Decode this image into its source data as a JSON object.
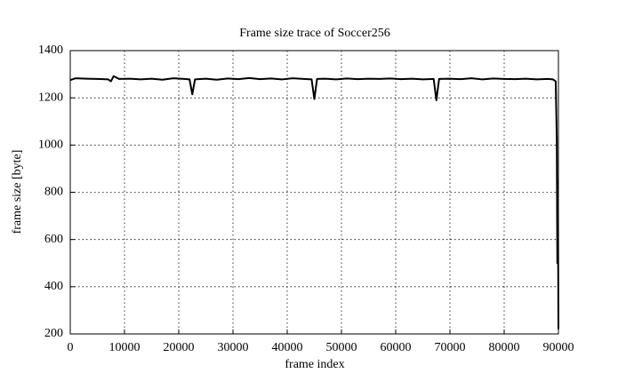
{
  "chart_data": {
    "type": "line",
    "title": "Frame size trace of Soccer256",
    "x_label": "frame index",
    "y_label": "frame size [byte]",
    "x": [
      0,
      1000,
      3000,
      5000,
      7000,
      7500,
      8000,
      9000,
      11000,
      13000,
      15000,
      17000,
      19000,
      21000,
      22000,
      22500,
      23000,
      25000,
      27000,
      29000,
      31000,
      33000,
      35000,
      37000,
      39000,
      41000,
      43000,
      44500,
      45000,
      45500,
      47000,
      49000,
      51000,
      53000,
      55000,
      57000,
      59000,
      61000,
      63000,
      65000,
      67000,
      67500,
      68000,
      70000,
      72000,
      74000,
      76000,
      78000,
      80000,
      82000,
      84000,
      86000,
      88000,
      89000,
      89500,
      89700,
      89800,
      89900,
      90000
    ],
    "series": [
      {
        "name": "Soccer256",
        "color": "#000000",
        "values": [
          1275,
          1283,
          1281,
          1280,
          1278,
          1270,
          1292,
          1280,
          1281,
          1278,
          1281,
          1277,
          1283,
          1280,
          1278,
          1215,
          1278,
          1281,
          1277,
          1282,
          1279,
          1284,
          1279,
          1282,
          1278,
          1283,
          1280,
          1278,
          1195,
          1280,
          1281,
          1278,
          1282,
          1279,
          1281,
          1280,
          1282,
          1279,
          1281,
          1278,
          1280,
          1190,
          1280,
          1281,
          1279,
          1283,
          1278,
          1282,
          1280,
          1279,
          1281,
          1278,
          1280,
          1278,
          1270,
          1020,
          500,
          850,
          220
        ]
      }
    ],
    "xlim": [
      0,
      90000
    ],
    "ylim": [
      200,
      1400
    ],
    "xticks": [
      0,
      10000,
      20000,
      30000,
      40000,
      50000,
      60000,
      70000,
      80000,
      90000
    ],
    "yticks": [
      200,
      400,
      600,
      800,
      1000,
      1200,
      1400
    ],
    "grid": true
  }
}
